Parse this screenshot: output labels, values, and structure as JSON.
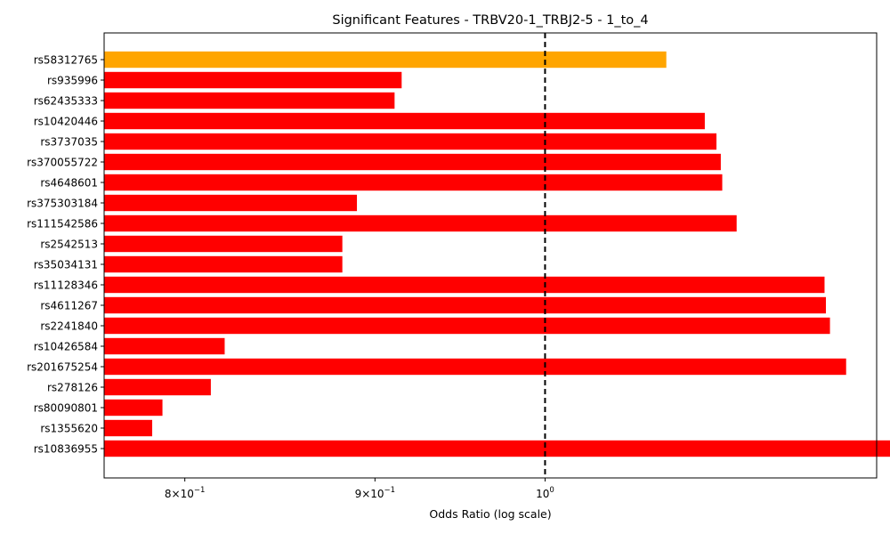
{
  "chart_data": {
    "type": "bar",
    "orientation": "horizontal",
    "title": "Significant Features - TRBV20-1_TRBJ2-5 - 1_to_4",
    "xlabel": "Odds Ratio (log scale)",
    "ylabel": "",
    "x_scale": "log",
    "xlim": [
      0.761,
      1.228
    ],
    "x_ticks": [
      {
        "value": 0.8,
        "label": "8×10",
        "exp": "−1"
      },
      {
        "value": 0.9,
        "label": "9×10",
        "exp": "−1"
      },
      {
        "value": 1.0,
        "label": "10",
        "exp": "0"
      }
    ],
    "reference_line": {
      "value": 1.0,
      "style": "dashed",
      "color": "#000000"
    },
    "grid": false,
    "legend": "none",
    "categories": [
      "rs58312765",
      "rs935996",
      "rs62435333",
      "rs10420446",
      "rs3737035",
      "rs370055722",
      "rs4648601",
      "rs375303184",
      "rs111542586",
      "rs2542513",
      "rs35034131",
      "rs11128346",
      "rs4611267",
      "rs2241840",
      "rs10426584",
      "rs201675254",
      "rs278126",
      "rs80090801",
      "rs1355620",
      "rs10836955"
    ],
    "values": [
      1.078,
      0.915,
      0.911,
      1.104,
      1.112,
      1.115,
      1.116,
      0.89,
      1.126,
      0.882,
      0.882,
      1.189,
      1.19,
      1.193,
      0.82,
      1.205,
      0.813,
      0.789,
      0.784,
      1.248
    ],
    "colors": [
      "#ffa500",
      "#ff0000",
      "#ff0000",
      "#ff0000",
      "#ff0000",
      "#ff0000",
      "#ff0000",
      "#ff0000",
      "#ff0000",
      "#ff0000",
      "#ff0000",
      "#ff0000",
      "#ff0000",
      "#ff0000",
      "#ff0000",
      "#ff0000",
      "#ff0000",
      "#ff0000",
      "#ff0000",
      "#ff0000"
    ]
  }
}
